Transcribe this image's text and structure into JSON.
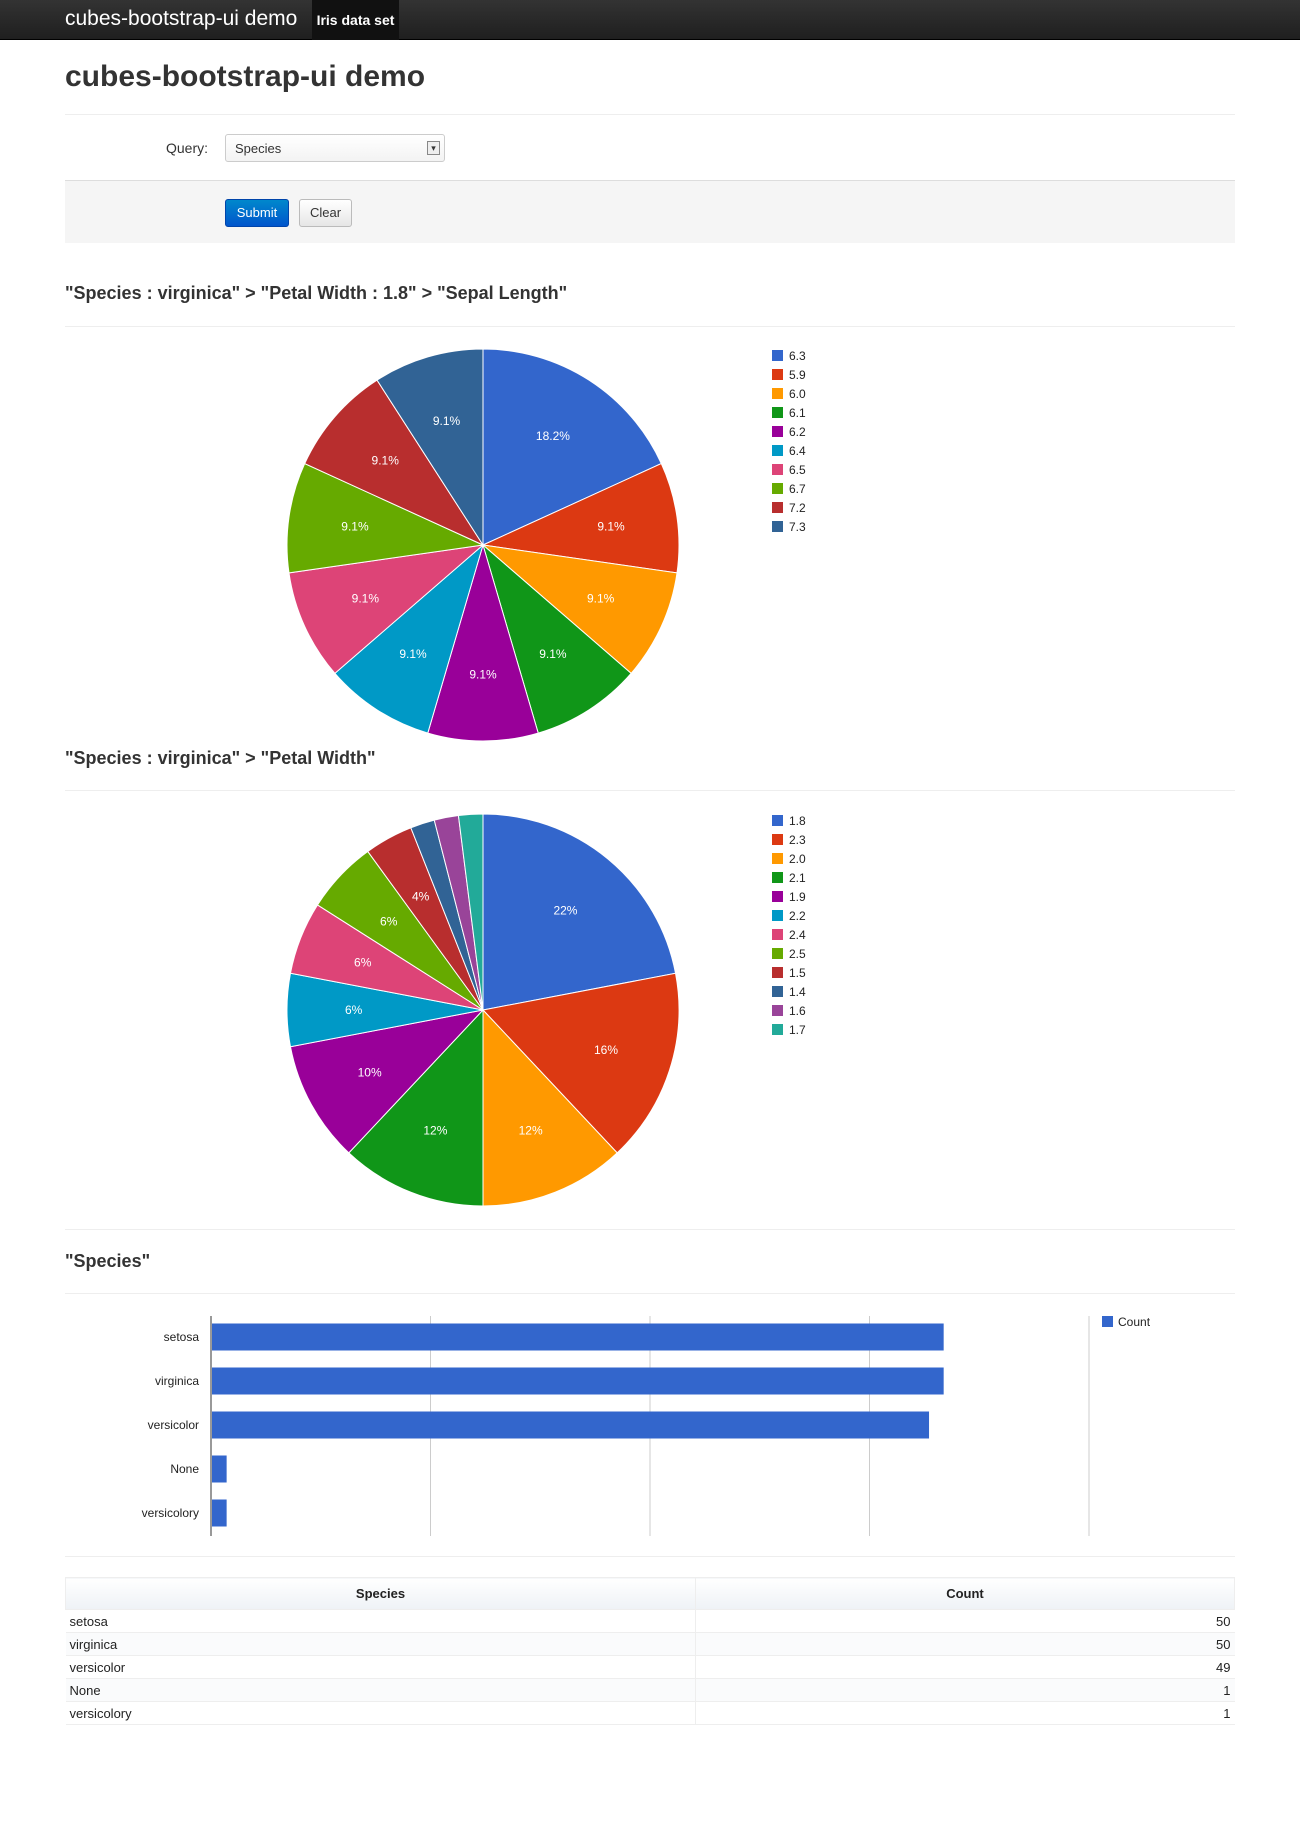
{
  "navbar": {
    "brand": "cubes-bootstrap-ui demo",
    "link": "Iris data set"
  },
  "page": {
    "title": "cubes-bootstrap-ui demo"
  },
  "query": {
    "label": "Query:",
    "selected": "Species"
  },
  "actions": {
    "submit": "Submit",
    "clear": "Clear"
  },
  "sections": {
    "sepal": "\"Species : virginica\" > \"Petal Width : 1.8\" > \"Sepal Length\"",
    "petal": "\"Species : virginica\" > \"Petal Width\"",
    "species": "\"Species\""
  },
  "colors": [
    "#3366cc",
    "#dc3912",
    "#ff9900",
    "#109618",
    "#990099",
    "#0099c6",
    "#dd4477",
    "#66aa00",
    "#b82e2e",
    "#316395",
    "#994499",
    "#22aa99"
  ],
  "chart_data": [
    {
      "type": "pie",
      "labels": [
        "6.3",
        "5.9",
        "6.0",
        "6.1",
        "6.2",
        "6.4",
        "6.5",
        "6.7",
        "7.2",
        "7.3"
      ],
      "values": [
        2,
        1,
        1,
        1,
        1,
        1,
        1,
        1,
        1,
        1
      ],
      "slice_labels": [
        "18.2%",
        "9.1%",
        "9.1%",
        "9.1%",
        "9.1%",
        "9.1%",
        "9.1%",
        "9.1%",
        "9.1%",
        "9.1%"
      ]
    },
    {
      "type": "pie",
      "labels": [
        "1.8",
        "2.3",
        "2.0",
        "2.1",
        "1.9",
        "2.2",
        "2.4",
        "2.5",
        "1.5",
        "1.4",
        "1.6",
        "1.7"
      ],
      "values": [
        11,
        8,
        6,
        6,
        5,
        3,
        3,
        3,
        2,
        1,
        1,
        1
      ],
      "slice_labels": [
        "22%",
        "16%",
        "12%",
        "12%",
        "10%",
        "6%",
        "6%",
        "6%",
        "4%",
        "",
        "",
        ""
      ]
    },
    {
      "type": "bar",
      "orientation": "horizontal",
      "categories": [
        "setosa",
        "virginica",
        "versicolor",
        "None",
        "versicolory"
      ],
      "series": [
        {
          "name": "Count",
          "values": [
            50,
            50,
            49,
            1,
            1
          ]
        }
      ],
      "xlim": [
        0,
        60
      ],
      "legend": "top-right"
    }
  ],
  "table": {
    "headers": [
      "Species",
      "Count"
    ],
    "rows": [
      [
        "setosa",
        "50"
      ],
      [
        "virginica",
        "50"
      ],
      [
        "versicolor",
        "49"
      ],
      [
        "None",
        "1"
      ],
      [
        "versicolory",
        "1"
      ]
    ]
  }
}
